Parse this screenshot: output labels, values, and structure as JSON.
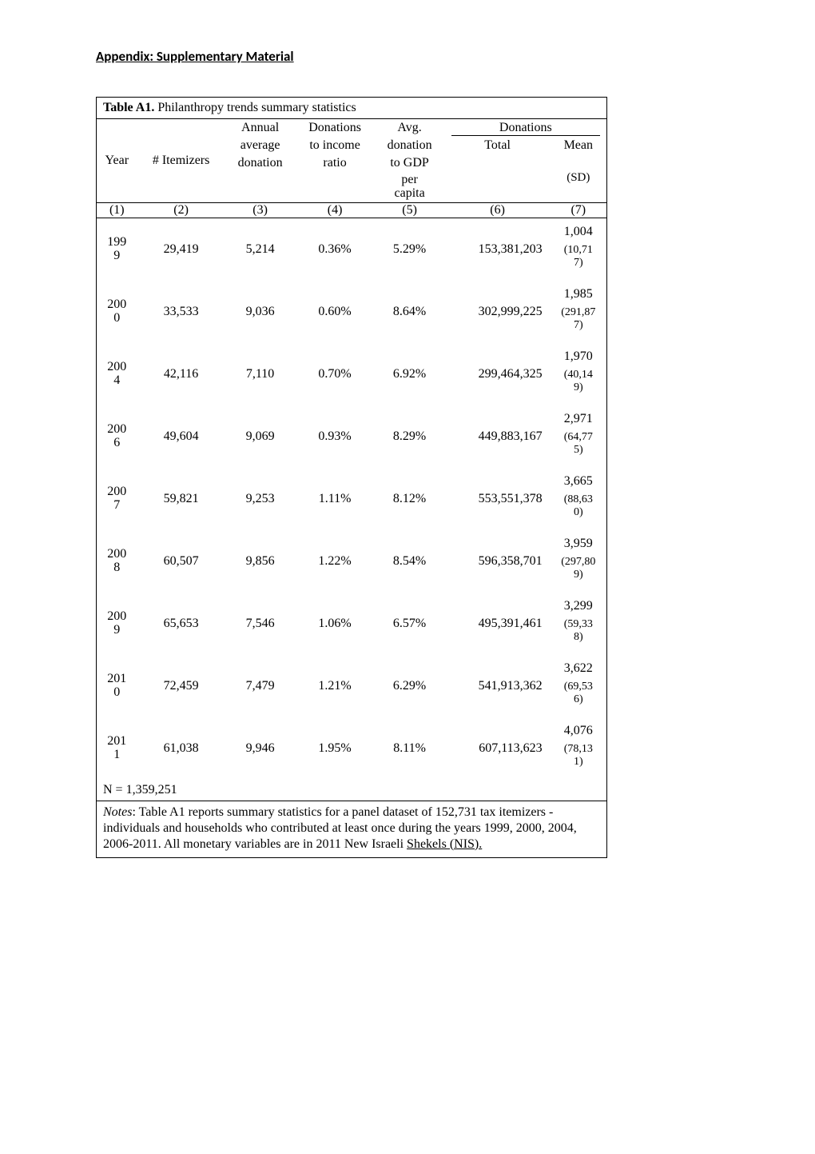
{
  "heading": "Appendix: Supplementary Material",
  "table": {
    "caption_bold": "Table A1.",
    "caption_rest": " Philanthropy trends summary statistics",
    "headers": {
      "year": "Year",
      "itemizers": "# Itemizers",
      "annual_l1": "Annual",
      "annual_l2": "average",
      "annual_l3": "donation",
      "dratio_l1": "Donations",
      "dratio_l2": "to income",
      "dratio_l3": "ratio",
      "avg_l1": "Avg.",
      "avg_l2": "donation",
      "avg_l3": "to GDP",
      "avg_l4": "per",
      "avg_l5": "capita",
      "donations": "Donations",
      "total": "Total",
      "mean": "Mean",
      "sd": "(SD)"
    },
    "colnums": {
      "c1": "(1)",
      "c2": "(2)",
      "c3": "(3)",
      "c4": "(4)",
      "c5": "(5)",
      "c6": "(6)",
      "c7": "(7)"
    },
    "rows": [
      {
        "year_a": "199",
        "year_b": "9",
        "itemizers": "29,419",
        "annual": "5,214",
        "dratio": "0.36%",
        "avg": "5.29%",
        "total": "153,381,203",
        "mean": "1,004",
        "sd": "(10,717)"
      },
      {
        "year_a": "200",
        "year_b": "0",
        "itemizers": "33,533",
        "annual": "9,036",
        "dratio": "0.60%",
        "avg": "8.64%",
        "total": "302,999,225",
        "mean": "1,985",
        "sd": "(291,877)"
      },
      {
        "year_a": "200",
        "year_b": "4",
        "itemizers": "42,116",
        "annual": "7,110",
        "dratio": "0.70%",
        "avg": "6.92%",
        "total": "299,464,325",
        "mean": "1,970",
        "sd": "(40,149)"
      },
      {
        "year_a": "200",
        "year_b": "6",
        "itemizers": "49,604",
        "annual": "9,069",
        "dratio": "0.93%",
        "avg": "8.29%",
        "total": "449,883,167",
        "mean": "2,971",
        "sd": "(64,775)"
      },
      {
        "year_a": "200",
        "year_b": "7",
        "itemizers": "59,821",
        "annual": "9,253",
        "dratio": "1.11%",
        "avg": "8.12%",
        "total": "553,551,378",
        "mean": "3,665",
        "sd": "(88,630)"
      },
      {
        "year_a": "200",
        "year_b": "8",
        "itemizers": "60,507",
        "annual": "9,856",
        "dratio": "1.22%",
        "avg": "8.54%",
        "total": "596,358,701",
        "mean": "3,959",
        "sd": "(297,809)"
      },
      {
        "year_a": "200",
        "year_b": "9",
        "itemizers": "65,653",
        "annual": "7,546",
        "dratio": "1.06%",
        "avg": "6.57%",
        "total": "495,391,461",
        "mean": "3,299",
        "sd": "(59,338)"
      },
      {
        "year_a": "201",
        "year_b": "0",
        "itemizers": "72,459",
        "annual": "7,479",
        "dratio": "1.21%",
        "avg": "6.29%",
        "total": "541,913,362",
        "mean": "3,622",
        "sd": "(69,536)"
      },
      {
        "year_a": "201",
        "year_b": "1",
        "itemizers": "61,038",
        "annual": "9,946",
        "dratio": "1.95%",
        "avg": "8.11%",
        "total": "607,113,623",
        "mean": "4,076",
        "sd": "(78,131)"
      }
    ],
    "n_line": "N = 1,359,251",
    "notes_italic": "Notes",
    "notes_rest": ": Table A1 reports summary statistics for a panel dataset of 152,731 tax itemizers - individuals and households who contributed at least once during the years 1999, 2000, 2004, 2006-2011. All monetary variables are in 2011 New Israeli ",
    "notes_last": "Shekels (NIS)."
  }
}
